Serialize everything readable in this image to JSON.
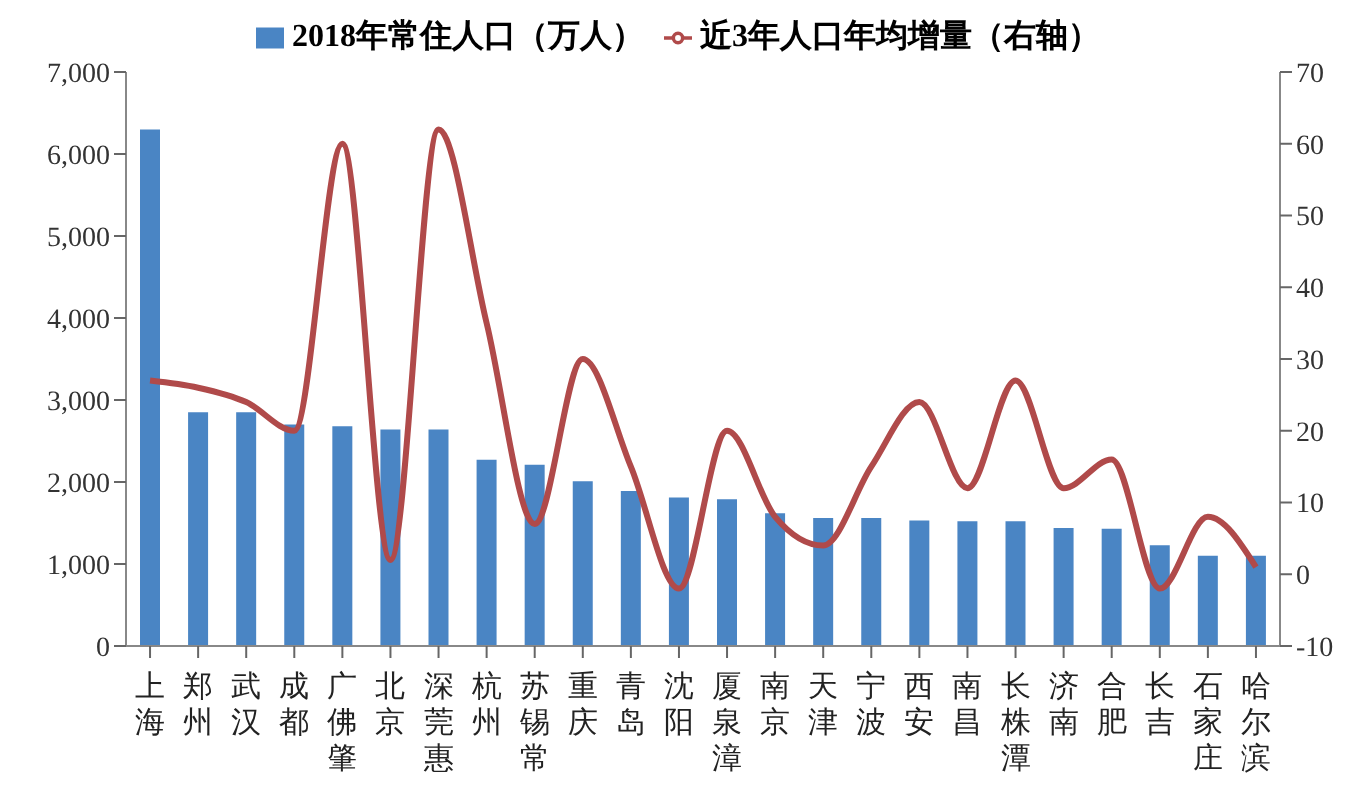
{
  "chart_data": {
    "type": "bar",
    "categories": [
      "上海",
      "郑州",
      "武汉",
      "成都",
      "广佛肇",
      "北京",
      "深莞惠",
      "杭州",
      "苏锡常",
      "重庆",
      "青岛",
      "沈阳",
      "厦泉漳",
      "南京",
      "天津",
      "宁波",
      "西安",
      "南昌",
      "长株潭",
      "济南",
      "合肥",
      "长吉",
      "石家庄",
      "哈尔滨"
    ],
    "series": [
      {
        "name": "2018年常住人口（万人）",
        "color": "#4a85c4",
        "values": [
          6300,
          2850,
          2850,
          2700,
          2680,
          2640,
          2640,
          2270,
          2210,
          2010,
          1890,
          1810,
          1790,
          1620,
          1560,
          1560,
          1530,
          1520,
          1520,
          1440,
          1430,
          1230,
          1100,
          1100
        ]
      },
      {
        "name": "近3年人口年均增量（右轴）",
        "type": "line",
        "axis": "y2",
        "color": "#b04a4a",
        "values": [
          27,
          26,
          24,
          20,
          60,
          2,
          62,
          35,
          7,
          30,
          15,
          -2,
          20,
          8,
          4,
          15,
          24,
          12,
          27,
          12,
          16,
          -2,
          8,
          1
        ]
      }
    ],
    "ylim": [
      0,
      7000
    ],
    "yticks": [
      {
        "value": 0,
        "label": "0"
      },
      {
        "value": 1000,
        "label": "1,000"
      },
      {
        "value": 2000,
        "label": "2,000"
      },
      {
        "value": 3000,
        "label": "3,000"
      },
      {
        "value": 4000,
        "label": "4,000"
      },
      {
        "value": 5000,
        "label": "5,000"
      },
      {
        "value": 6000,
        "label": "6,000"
      },
      {
        "value": 7000,
        "label": "7,000"
      }
    ],
    "y2lim": [
      -10,
      70
    ],
    "y2ticks": [
      -10,
      0,
      10,
      20,
      30,
      40,
      50,
      60,
      70
    ],
    "grid": false,
    "legend": "top"
  }
}
